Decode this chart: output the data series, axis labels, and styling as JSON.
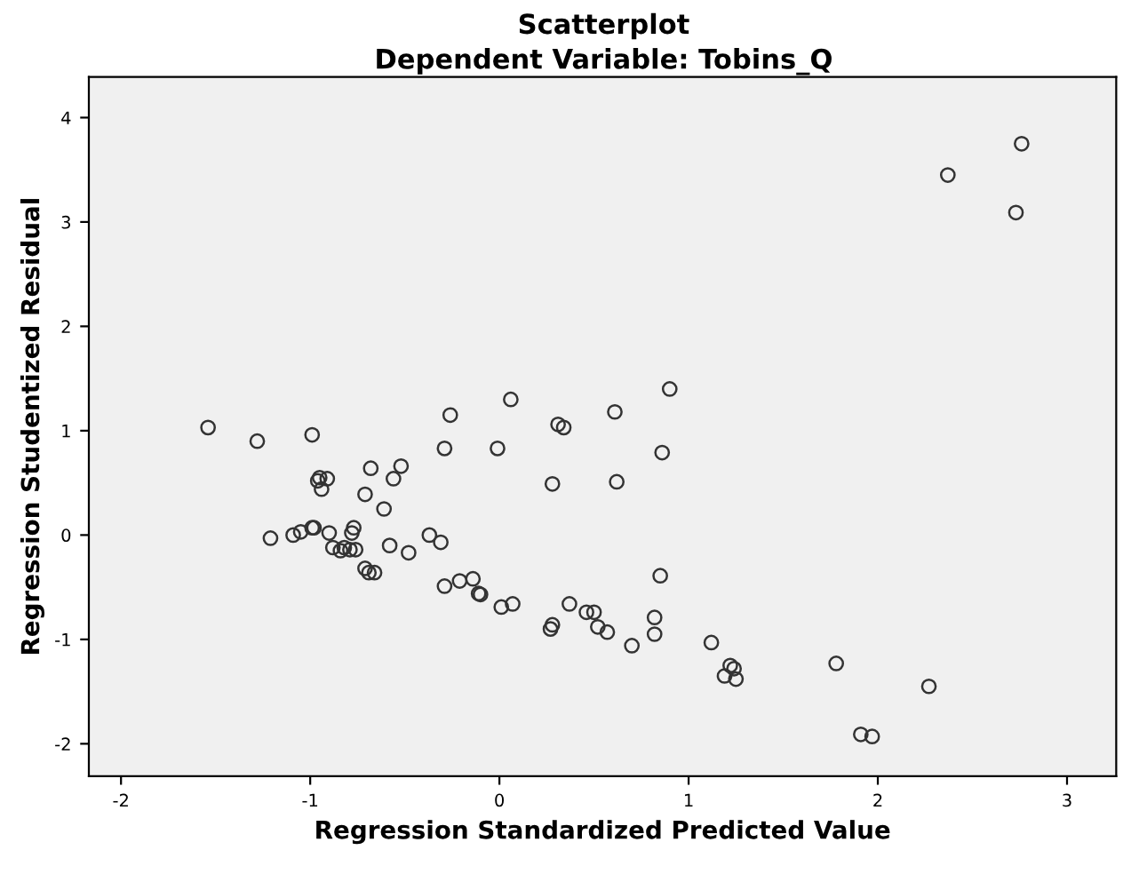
{
  "chart_data": {
    "type": "scatter",
    "title": "Scatterplot",
    "subtitle": "Dependent Variable: Tobins_Q",
    "xlabel": "Regression Standardized Predicted Value",
    "ylabel": "Regression Studentized Residual",
    "xlim": [
      -2.17,
      3.26
    ],
    "ylim": [
      -2.31,
      4.39
    ],
    "xticks": [
      -2,
      -1,
      0,
      1,
      2,
      3
    ],
    "yticks": [
      -2,
      -1,
      0,
      1,
      2,
      3,
      4
    ],
    "grid": false,
    "marker": "circle",
    "series": [
      {
        "color": "#333333",
        "x": [
          -1.54,
          -1.28,
          -0.99,
          -0.96,
          -0.95,
          -0.94,
          -0.91,
          -0.68,
          -0.52,
          -0.56,
          -0.61,
          -0.71,
          -1.21,
          -1.09,
          -1.05,
          -0.99,
          -0.98,
          -0.9,
          -0.88,
          -0.84,
          -0.82,
          -0.79,
          -0.76,
          -0.78,
          -0.77,
          -0.71,
          -0.69,
          -0.66,
          -0.58,
          -0.48,
          -0.37,
          -0.31,
          -0.29,
          -0.21,
          -0.14,
          -0.11,
          -0.1,
          -0.29,
          -0.26,
          -0.01,
          0.06,
          0.01,
          0.07,
          0.31,
          0.34,
          0.28,
          0.61,
          0.62,
          0.9,
          0.86,
          0.85,
          0.37,
          0.46,
          0.5,
          0.52,
          0.57,
          0.7,
          0.82,
          0.82,
          1.12,
          0.28,
          0.27,
          1.22,
          1.19,
          1.25,
          1.24,
          1.78,
          2.27,
          1.91,
          1.97,
          2.37,
          2.76,
          2.73
        ],
        "values": [
          1.03,
          0.9,
          0.96,
          0.52,
          0.55,
          0.44,
          0.54,
          0.64,
          0.66,
          0.54,
          0.25,
          0.39,
          -0.03,
          0.0,
          0.03,
          0.07,
          0.07,
          0.02,
          -0.12,
          -0.15,
          -0.12,
          -0.14,
          -0.14,
          0.02,
          0.07,
          -0.32,
          -0.36,
          -0.36,
          -0.1,
          -0.17,
          0.0,
          -0.07,
          -0.49,
          -0.44,
          -0.42,
          -0.56,
          -0.57,
          0.83,
          1.15,
          0.83,
          1.3,
          -0.69,
          -0.66,
          1.06,
          1.03,
          0.49,
          1.18,
          0.51,
          1.4,
          0.79,
          -0.39,
          -0.66,
          -0.74,
          -0.74,
          -0.88,
          -0.93,
          -1.06,
          -0.79,
          -0.95,
          -1.03,
          -0.86,
          -0.9,
          -1.25,
          -1.35,
          -1.38,
          -1.28,
          -1.23,
          -1.45,
          -1.91,
          -1.93,
          3.45,
          3.75,
          3.09
        ]
      }
    ]
  }
}
